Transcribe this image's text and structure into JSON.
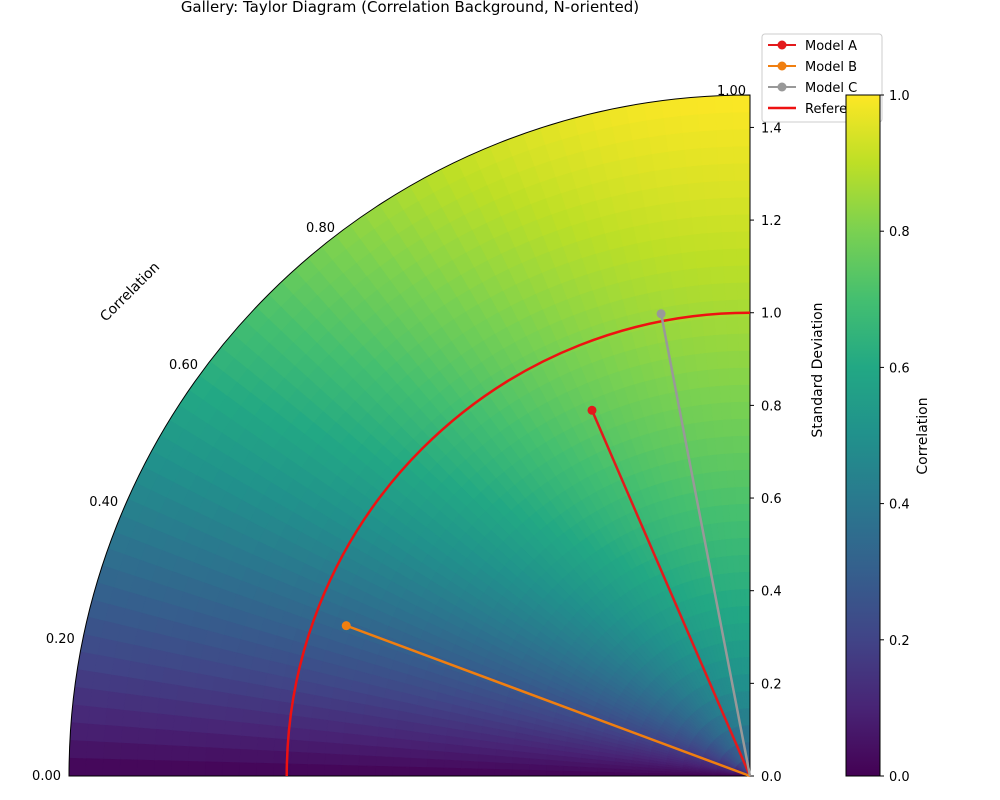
{
  "chart_data": {
    "type": "scatter",
    "title": "Gallery: Taylor Diagram (Correlation Background, N-oriented)",
    "angular_axis_label": "Correlation",
    "radial_axis_label": "Standard Deviation",
    "colorbar_label": "Correlation",
    "correlation_ticks": [
      "0.00",
      "0.20",
      "0.40",
      "0.60",
      "0.80",
      "1.00"
    ],
    "correlation_tick_values": [
      0.0,
      0.2,
      0.4,
      0.6,
      0.8,
      1.0
    ],
    "std_ticks": [
      "0.0",
      "0.2",
      "0.4",
      "0.6",
      "0.8",
      "1.0",
      "1.2",
      "1.4"
    ],
    "std_tick_values": [
      0.0,
      0.2,
      0.4,
      0.6,
      0.8,
      1.0,
      1.2,
      1.4
    ],
    "colorbar_ticks": [
      "0.0",
      "0.2",
      "0.4",
      "0.6",
      "0.8",
      "1.0"
    ],
    "colorbar_tick_values": [
      0.0,
      0.2,
      0.4,
      0.6,
      0.8,
      1.0
    ],
    "std_range": [
      0,
      1.47
    ],
    "correlation_range": [
      0,
      1
    ],
    "colormap": "viridis",
    "reference": {
      "name": "Reference",
      "std": 1.0,
      "color": "#ee1111"
    },
    "series": [
      {
        "name": "Model A",
        "std": 0.86,
        "correlation": 0.918,
        "color": "#e31a1c"
      },
      {
        "name": "Model B",
        "std": 0.93,
        "correlation": 0.349,
        "color": "#f07f10"
      },
      {
        "name": "Model C",
        "std": 1.016,
        "correlation": 0.982,
        "color": "#999999"
      }
    ],
    "legend_position": "top-right"
  }
}
